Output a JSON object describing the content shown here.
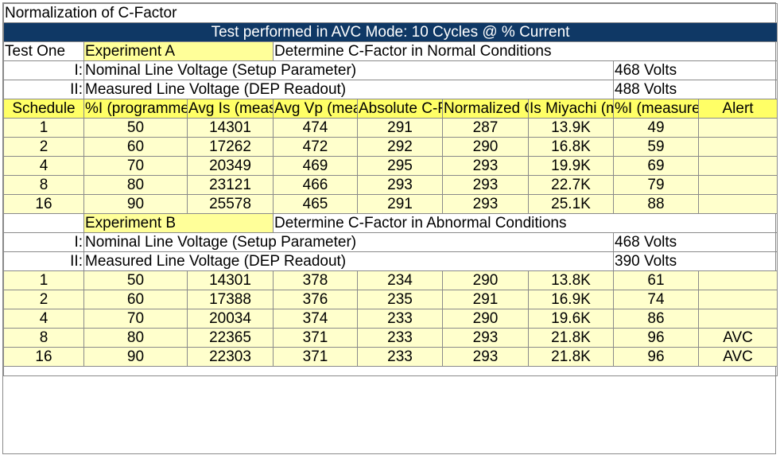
{
  "title": "Normalization of C-Factor",
  "banner": "Test performed in AVC Mode: 10 Cycles @ % Current",
  "test_label": "Test One",
  "experiment_a": {
    "label": "Experiment A",
    "description": "Determine C-Factor in Normal Conditions",
    "param1_prefix": "I:",
    "param1_label": "Nominal Line Voltage (Setup Parameter)",
    "param1_value": "468 Volts",
    "param2_prefix": "II:",
    "param2_label": "Measured Line Voltage (DEP Readout)",
    "param2_value": "488 Volts"
  },
  "headers": [
    "Schedule",
    "%I (programmed)",
    "Avg Is (measured)",
    "Avg Vp (measured)",
    "Absolute C-Factor (measured)",
    "Normalized C-Factor (calculated)",
    "Is Miyachi (measured)",
    "%I (measured)",
    "Alert"
  ],
  "rows_a": [
    [
      "1",
      "50",
      "14301",
      "474",
      "291",
      "287",
      "13.9K",
      "49",
      ""
    ],
    [
      "2",
      "60",
      "17262",
      "472",
      "292",
      "290",
      "16.8K",
      "59",
      ""
    ],
    [
      "4",
      "70",
      "20349",
      "469",
      "295",
      "293",
      "19.9K",
      "69",
      ""
    ],
    [
      "8",
      "80",
      "23121",
      "466",
      "293",
      "293",
      "22.7K",
      "79",
      ""
    ],
    [
      "16",
      "90",
      "25578",
      "465",
      "291",
      "293",
      "25.1K",
      "88",
      ""
    ]
  ],
  "experiment_b": {
    "label": "Experiment B",
    "description": "Determine C-Factor in Abnormal Conditions",
    "param1_prefix": "I:",
    "param1_label": "Nominal Line Voltage (Setup Parameter)",
    "param1_value": "468 Volts",
    "param2_prefix": "II:",
    "param2_label": "Measured Line Voltage (DEP Readout)",
    "param2_value": "390 Volts"
  },
  "rows_b": [
    [
      "1",
      "50",
      "14301",
      "378",
      "234",
      "290",
      "13.8K",
      "61",
      ""
    ],
    [
      "2",
      "60",
      "17388",
      "376",
      "235",
      "291",
      "16.9K",
      "74",
      ""
    ],
    [
      "4",
      "70",
      "20034",
      "374",
      "233",
      "290",
      "19.6K",
      "86",
      ""
    ],
    [
      "8",
      "80",
      "22365",
      "371",
      "233",
      "293",
      "21.8K",
      "96",
      "AVC"
    ],
    [
      "16",
      "90",
      "22303",
      "371",
      "233",
      "293",
      "21.8K",
      "96",
      "AVC"
    ]
  ]
}
